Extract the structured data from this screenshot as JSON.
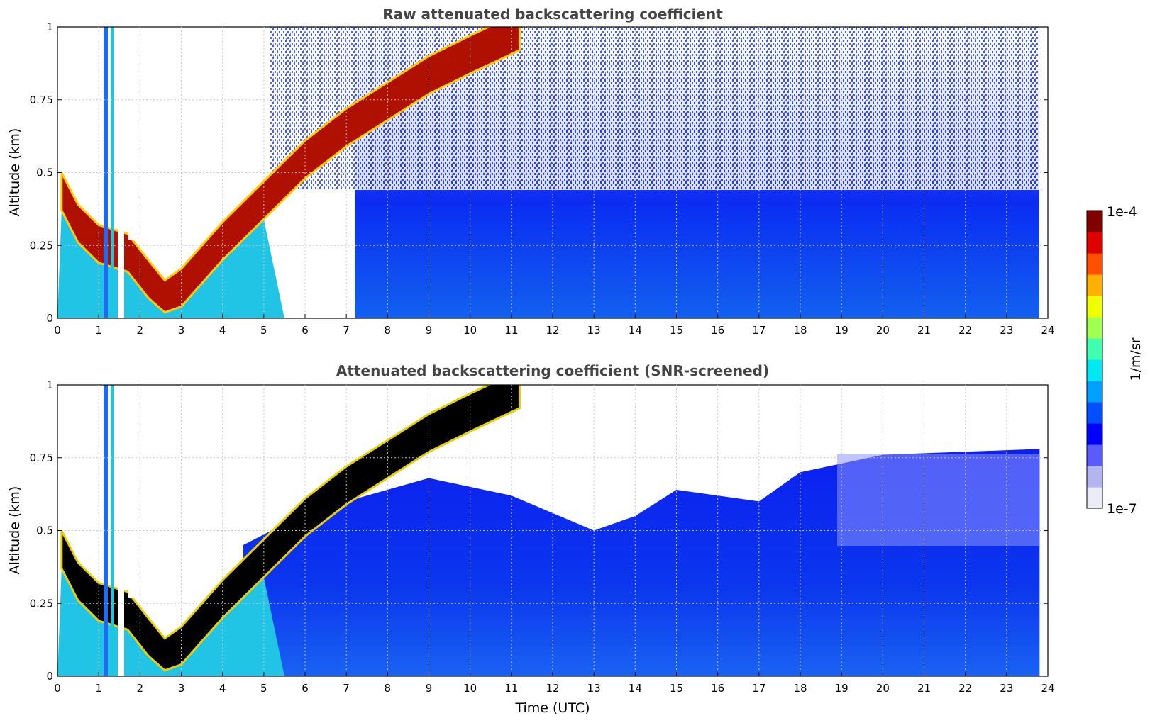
{
  "chart_data": [
    {
      "type": "heatmap",
      "title": "Raw attenuated backscattering coefficient",
      "xlabel": "",
      "ylabel": "Altitude (km)",
      "xlim": [
        0,
        24
      ],
      "ylim": [
        0,
        1
      ],
      "x_ticks": [
        "0",
        "1",
        "2",
        "3",
        "4",
        "5",
        "6",
        "7",
        "8",
        "9",
        "10",
        "11",
        "12",
        "13",
        "14",
        "15",
        "16",
        "17",
        "18",
        "19",
        "20",
        "21",
        "22",
        "23",
        "24"
      ],
      "y_ticks": [
        "0",
        "0.25",
        "0.5",
        "0.75",
        "1"
      ],
      "grid": true,
      "layer_boundary_km": [
        {
          "t": 0.1,
          "z": 0.45
        },
        {
          "t": 0.5,
          "z": 0.34
        },
        {
          "t": 1.0,
          "z": 0.27
        },
        {
          "t": 1.7,
          "z": 0.24
        },
        {
          "t": 2.2,
          "z": 0.15
        },
        {
          "t": 2.6,
          "z": 0.08
        },
        {
          "t": 3.0,
          "z": 0.12
        },
        {
          "t": 3.5,
          "z": 0.2
        },
        {
          "t": 4.0,
          "z": 0.28
        },
        {
          "t": 4.5,
          "z": 0.35
        },
        {
          "t": 5.0,
          "z": 0.42
        },
        {
          "t": 6.0,
          "z": 0.56
        },
        {
          "t": 7.0,
          "z": 0.67
        },
        {
          "t": 8.0,
          "z": 0.76
        },
        {
          "t": 9.0,
          "z": 0.85
        },
        {
          "t": 10.0,
          "z": 0.92
        },
        {
          "t": 11.2,
          "z": 1.0
        }
      ],
      "data_end_hour": 23.8
    },
    {
      "type": "heatmap",
      "title": "Attenuated backscattering coefficient (SNR-screened)",
      "xlabel": "Time (UTC)",
      "ylabel": "Altitude (km)",
      "xlim": [
        0,
        24
      ],
      "ylim": [
        0,
        1
      ],
      "x_ticks": [
        "0",
        "1",
        "2",
        "3",
        "4",
        "5",
        "6",
        "7",
        "8",
        "9",
        "10",
        "11",
        "12",
        "13",
        "14",
        "15",
        "16",
        "17",
        "18",
        "19",
        "20",
        "21",
        "22",
        "23",
        "24"
      ],
      "y_ticks": [
        "0",
        "0.25",
        "0.5",
        "0.75",
        "1"
      ],
      "grid": true,
      "screened_top_km": [
        {
          "t": 4.5,
          "z": 0.45
        },
        {
          "t": 6.0,
          "z": 0.56
        },
        {
          "t": 7.5,
          "z": 0.62
        },
        {
          "t": 9.0,
          "z": 0.68
        },
        {
          "t": 11.0,
          "z": 0.62
        },
        {
          "t": 13.0,
          "z": 0.5
        },
        {
          "t": 14.0,
          "z": 0.55
        },
        {
          "t": 15.0,
          "z": 0.64
        },
        {
          "t": 17.0,
          "z": 0.6
        },
        {
          "t": 18.0,
          "z": 0.7
        },
        {
          "t": 20.0,
          "z": 0.76
        },
        {
          "t": 23.8,
          "z": 0.78
        }
      ],
      "data_end_hour": 23.8
    }
  ],
  "colorbar": {
    "label": "1/m/sr",
    "max_label": "1e-4",
    "min_label": "1e-7",
    "colors": [
      "#ececf8",
      "#b4b4f0",
      "#5a5aff",
      "#0000ff",
      "#0050ff",
      "#00a0ff",
      "#00e8f0",
      "#40ffb0",
      "#a0ff50",
      "#f0ff00",
      "#ffb000",
      "#ff5000",
      "#e00000",
      "#800000"
    ]
  }
}
